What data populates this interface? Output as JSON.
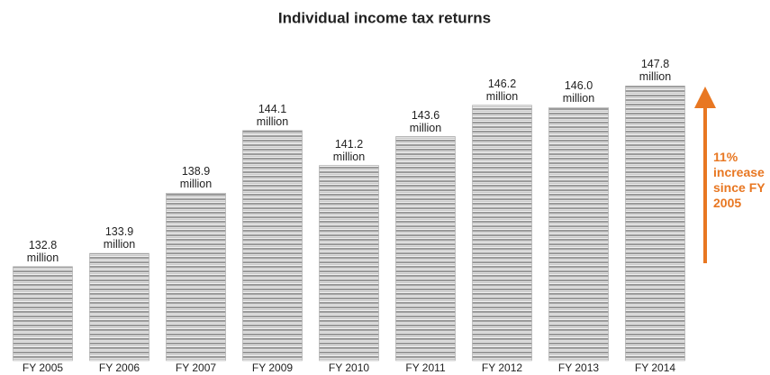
{
  "chart_data": {
    "type": "bar",
    "title": "Individual income tax returns",
    "categories": [
      "FY 2005",
      "FY 2006",
      "FY 2007",
      "FY 2009",
      "FY 2010",
      "FY 2011",
      "FY 2012",
      "FY 2013",
      "FY 2014"
    ],
    "values": [
      132.8,
      133.9,
      138.9,
      144.1,
      141.2,
      143.6,
      146.2,
      146.0,
      147.8
    ],
    "value_labels": [
      "132.8 million",
      "133.9 million",
      "138.9 million",
      "144.1 million",
      "141.2 million",
      "143.6 million",
      "146.2 million",
      "146.0 million",
      "147.8 million"
    ],
    "color": "#a6a6a6",
    "ylim": [
      125,
      150
    ],
    "annotation": "11% increase since FY 2005",
    "annotation_color": "#e87722"
  }
}
